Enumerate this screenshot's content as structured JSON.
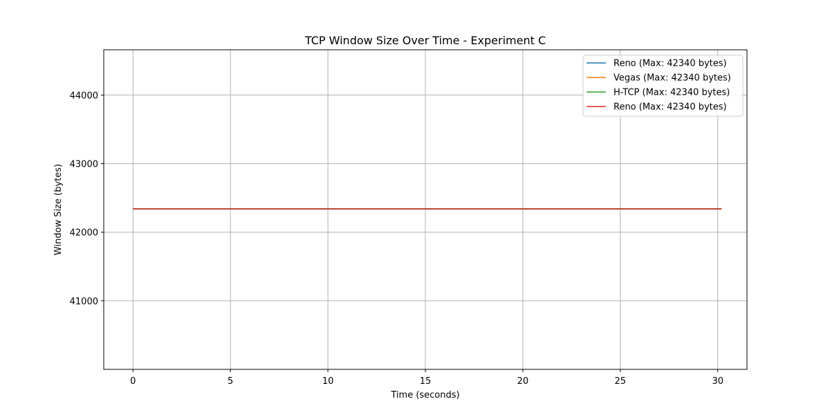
{
  "chart_data": {
    "type": "line",
    "title": "TCP Window Size Over Time - Experiment C",
    "xlabel": "Time (seconds)",
    "ylabel": "Window Size (bytes)",
    "xlim": [
      -1.5,
      31.5
    ],
    "ylim": [
      40000,
      44660
    ],
    "xticks": [
      0,
      5,
      10,
      15,
      20,
      25,
      30
    ],
    "yticks": [
      41000,
      42000,
      43000,
      44000
    ],
    "grid": true,
    "legend_position": "top-right",
    "series": [
      {
        "name": "Reno (Max: 42340 bytes)",
        "color": "#1f77b4",
        "x": [
          0,
          30.2
        ],
        "y": [
          42340,
          42340
        ]
      },
      {
        "name": "Vegas (Max: 42340 bytes)",
        "color": "#ff7f0e",
        "x": [
          0,
          30.2
        ],
        "y": [
          42340,
          42340
        ]
      },
      {
        "name": "H-TCP (Max: 42340 bytes)",
        "color": "#2ca02c",
        "x": [
          0,
          30.2
        ],
        "y": [
          42340,
          42340
        ]
      },
      {
        "name": "Reno (Max: 42340 bytes)",
        "color": "#d62728",
        "x": [
          0,
          30.2
        ],
        "y": [
          42340,
          42340
        ]
      }
    ]
  }
}
